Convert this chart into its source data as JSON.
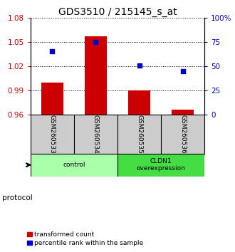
{
  "title": "GDS3510 / 215145_s_at",
  "samples": [
    "GSM260533",
    "GSM260534",
    "GSM260535",
    "GSM260536"
  ],
  "bar_values": [
    1.0,
    1.057,
    0.99,
    0.966
  ],
  "bar_bottom": 0.96,
  "percentile_values": [
    65,
    75,
    51,
    45
  ],
  "ylim_left": [
    0.96,
    1.08
  ],
  "ylim_right": [
    0,
    100
  ],
  "yticks_left": [
    0.96,
    0.99,
    1.02,
    1.05,
    1.08
  ],
  "yticks_right": [
    0,
    25,
    50,
    75,
    100
  ],
  "ytick_labels_left": [
    "0.96",
    "0.99",
    "1.02",
    "1.05",
    "1.08"
  ],
  "ytick_labels_right": [
    "0",
    "25",
    "50",
    "75",
    "100%"
  ],
  "bar_color": "#cc0000",
  "dot_color": "#0000cc",
  "protocol_groups": [
    {
      "label": "control",
      "samples": [
        0,
        1
      ],
      "color": "#aaffaa"
    },
    {
      "label": "CLDN1\noverexpression",
      "samples": [
        2,
        3
      ],
      "color": "#44dd44"
    }
  ],
  "protocol_label": "protocol",
  "legend_bar_label": "transformed count",
  "legend_dot_label": "percentile rank within the sample",
  "sample_area_bg": "#cccccc",
  "bar_width": 0.5,
  "title_fontsize": 10,
  "tick_fontsize": 7.5,
  "label_fontsize": 7.5
}
